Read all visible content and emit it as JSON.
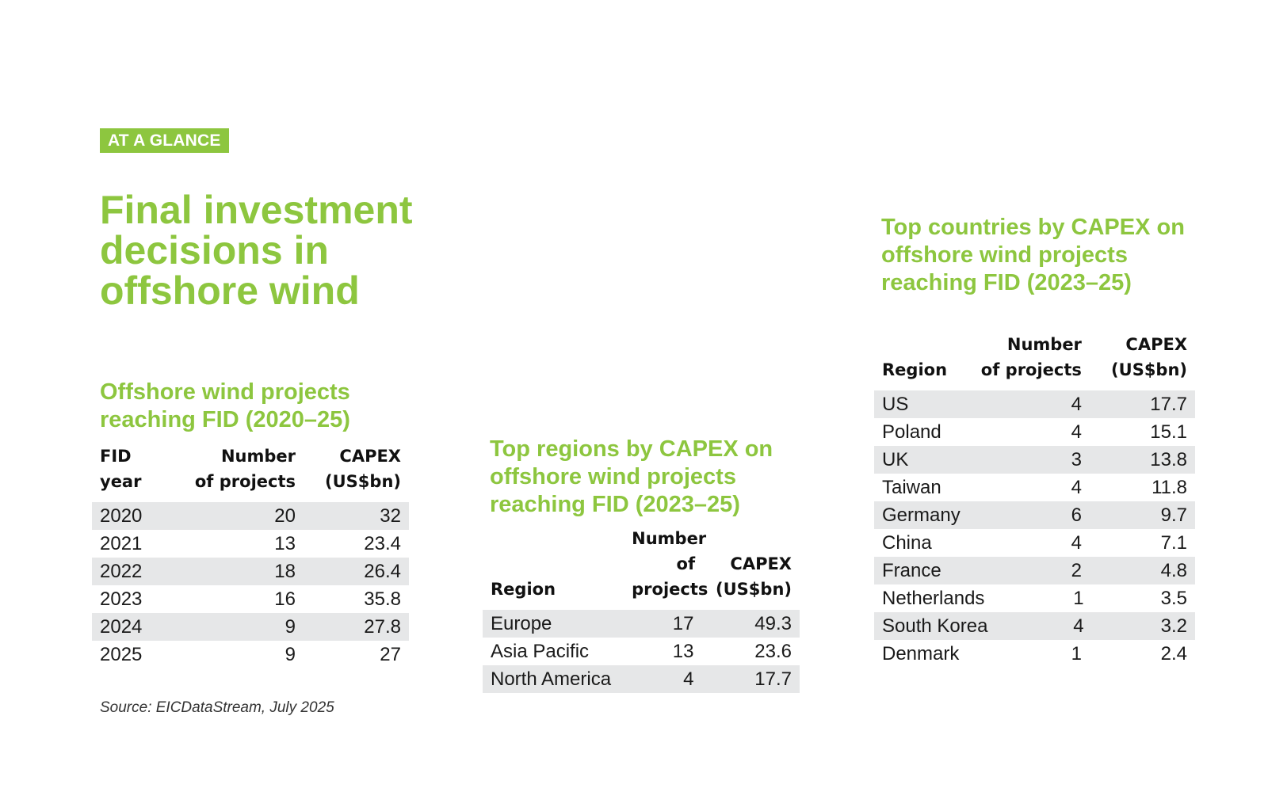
{
  "badge": "AT A GLANCE",
  "main_title": "Final investment decisions in offshore wind",
  "colors": {
    "accent": "#8dc63f",
    "row_shade": "#e6e7e8",
    "text": "#1a1a1a"
  },
  "table1": {
    "title": "Offshore wind projects reaching FID (2020–25)",
    "headers": [
      "FID\nyear",
      "Number\nof projects",
      "CAPEX\n(US$bn)"
    ],
    "rows": [
      [
        "2020",
        "20",
        "32"
      ],
      [
        "2021",
        "13",
        "23.4"
      ],
      [
        "2022",
        "18",
        "26.4"
      ],
      [
        "2023",
        "16",
        "35.8"
      ],
      [
        "2024",
        "9",
        "27.8"
      ],
      [
        "2025",
        "9",
        "27"
      ]
    ]
  },
  "table2": {
    "title": "Top regions by CAPEX on offshore wind projects reaching FID (2023–25)",
    "headers": [
      "Region",
      "Number\nof projects",
      "CAPEX\n(US$bn)"
    ],
    "rows": [
      [
        "Europe",
        "17",
        "49.3"
      ],
      [
        "Asia Pacific",
        "13",
        "23.6"
      ],
      [
        "North America",
        "4",
        "17.7"
      ]
    ]
  },
  "table3": {
    "title": "Top countries by CAPEX on offshore wind projects reaching FID (2023–25)",
    "headers": [
      "Region",
      "Number\nof projects",
      "CAPEX\n(US$bn)"
    ],
    "rows": [
      [
        "US",
        "4",
        "17.7"
      ],
      [
        "Poland",
        "4",
        "15.1"
      ],
      [
        "UK",
        "3",
        "13.8"
      ],
      [
        "Taiwan",
        "4",
        "11.8"
      ],
      [
        "Germany",
        "6",
        "9.7"
      ],
      [
        "China",
        "4",
        "7.1"
      ],
      [
        "France",
        "2",
        "4.8"
      ],
      [
        "Netherlands",
        "1",
        "3.5"
      ],
      [
        "South Korea",
        "4",
        "3.2"
      ],
      [
        "Denmark",
        "1",
        "2.4"
      ]
    ]
  },
  "source": "Source: EICDataStream, July 2025"
}
